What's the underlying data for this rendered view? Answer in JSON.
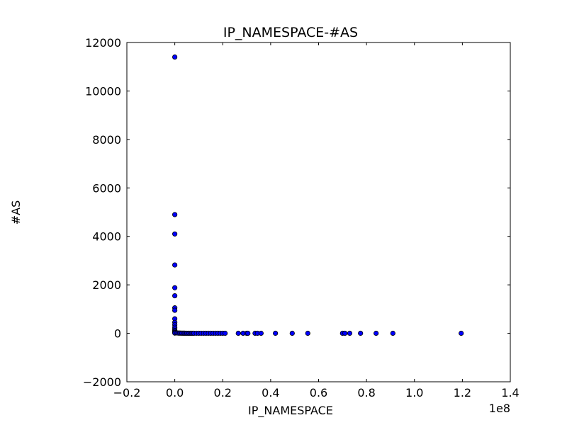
{
  "chart_data": {
    "type": "scatter",
    "title": "IP_NAMESPACE-#AS",
    "xlabel": "IP_NAMESPACE",
    "ylabel": "#AS",
    "x_offset_label": "1e8",
    "xlim": [
      -0.2,
      1.4
    ],
    "ylim": [
      -2000,
      12000
    ],
    "xticks": [
      "−0.2",
      "0.0",
      "0.2",
      "0.4",
      "0.6",
      "0.8",
      "1.0",
      "1.2",
      "1.4"
    ],
    "yticks": [
      "−2000",
      "0",
      "2000",
      "4000",
      "6000",
      "8000",
      "10000",
      "12000"
    ],
    "grid": false,
    "marker_color": "#0000ff",
    "series": [
      {
        "x": [
          0.0,
          0.0,
          0.0,
          0.0,
          0.0,
          0.0,
          0.0,
          0.0,
          0.0,
          0.0,
          0.0,
          0.0,
          0.0,
          0.0,
          0.0,
          0.0,
          0.0,
          0.005,
          0.01,
          0.015,
          0.02,
          0.025,
          0.03,
          0.035,
          0.04,
          0.045,
          0.05,
          0.055,
          0.06,
          0.065,
          0.07,
          0.075,
          0.08,
          0.09,
          0.1,
          0.11,
          0.12,
          0.13,
          0.14,
          0.15,
          0.16,
          0.17,
          0.18,
          0.19,
          0.2,
          0.21,
          0.265,
          0.285,
          0.3,
          0.305,
          0.335,
          0.345,
          0.36,
          0.42,
          0.49,
          0.555,
          0.7,
          0.71,
          0.73,
          0.775,
          0.84,
          0.91,
          1.195
        ],
        "y": [
          11400,
          4900,
          4100,
          2820,
          1880,
          1550,
          1050,
          950,
          600,
          450,
          350,
          250,
          180,
          120,
          80,
          40,
          10,
          20,
          15,
          10,
          10,
          8,
          6,
          5,
          5,
          4,
          4,
          3,
          3,
          3,
          2,
          2,
          2,
          2,
          2,
          2,
          2,
          2,
          2,
          2,
          2,
          2,
          2,
          2,
          2,
          2,
          2,
          2,
          2,
          2,
          2,
          2,
          2,
          2,
          2,
          2,
          2,
          2,
          2,
          2,
          2,
          2,
          2
        ]
      }
    ]
  }
}
